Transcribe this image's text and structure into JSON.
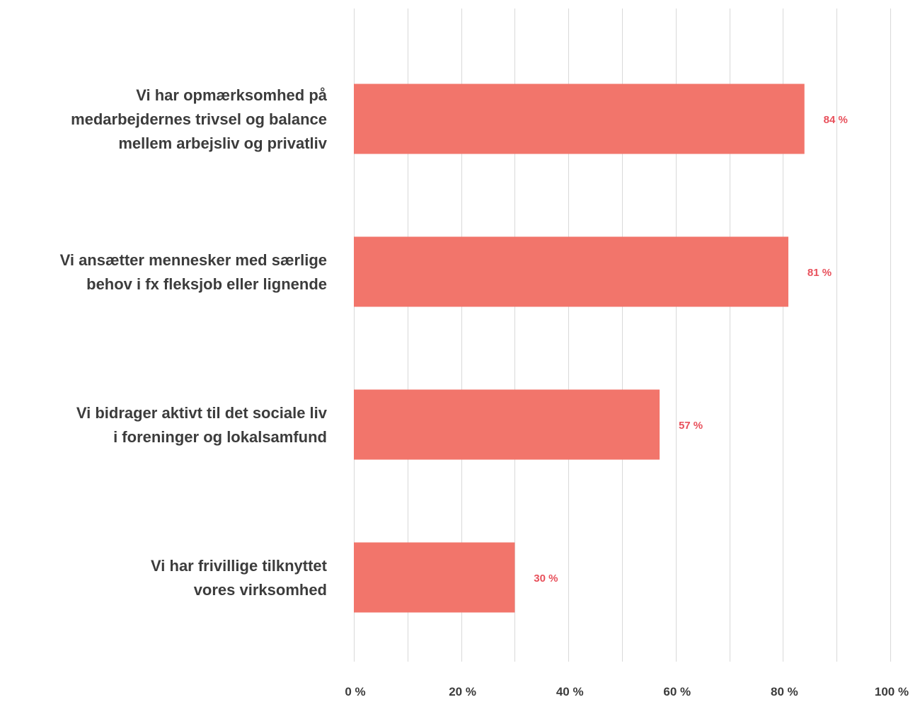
{
  "chart_data": {
    "type": "bar",
    "orientation": "horizontal",
    "categories": [
      [
        "Vi har opmærksomhed på",
        "medarbejdernes trivsel og balance",
        "mellem arbejsliv og privatliv"
      ],
      [
        "Vi ansætter mennesker med særlige",
        "behov i fx fleksjob eller lignende"
      ],
      [
        "Vi bidrager aktivt til det sociale liv",
        "i foreninger og lokalsamfund"
      ],
      [
        "Vi har frivillige tilknyttet",
        "vores virksomhed"
      ]
    ],
    "values": [
      84,
      81,
      57,
      30
    ],
    "data_labels": [
      "84 %",
      "81 %",
      "57 %",
      "30 %"
    ],
    "x_ticks": [
      0,
      20,
      40,
      60,
      80,
      100
    ],
    "x_tick_labels": [
      "0 %",
      "20 %",
      "40 %",
      "60 %",
      "80 %",
      "100 %"
    ],
    "xlim": [
      0,
      100
    ],
    "grid": true,
    "legend": "none",
    "colors": {
      "bar": "#f2756b",
      "data_label": "#e8505b",
      "grid": "#d9d9d9",
      "text": "#3c3c3c"
    }
  }
}
